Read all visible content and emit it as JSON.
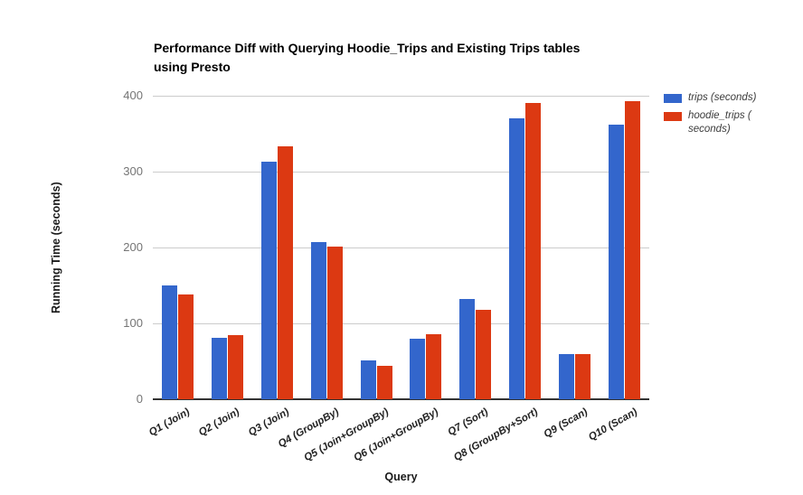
{
  "title": "Performance Diff with Querying Hoodie_Trips and Existing Trips tables\nusing Presto",
  "chart_data": {
    "type": "bar",
    "title": "Performance Diff with Querying Hoodie_Trips and Existing Trips tables using Presto",
    "xlabel": "Query",
    "ylabel": "Running Time (seconds)",
    "ylim": [
      0,
      400
    ],
    "yticks": [
      0,
      100,
      200,
      300,
      400
    ],
    "grid": true,
    "legend_position": "right",
    "categories": [
      "Q1 (Join)",
      "Q2 (Join)",
      "Q3 (Join)",
      "Q4 (GroupBy)",
      "Q5 (Join+GroupBy)",
      "Q6 (Join+GroupBy)",
      "Q7 (Sort)",
      "Q8 (GroupBy+Sort)",
      "Q9 (Scan)",
      "Q10 (Scan)"
    ],
    "series": [
      {
        "name": "trips (seconds)",
        "color": "#3366CC",
        "values": [
          150,
          81,
          313,
          207,
          51,
          80,
          132,
          370,
          60,
          362
        ]
      },
      {
        "name": "hoodie_trips (seconds)",
        "color": "#DC3912",
        "values": [
          138,
          85,
          333,
          201,
          44,
          86,
          118,
          390,
          59,
          393
        ]
      }
    ]
  },
  "legend": {
    "items": [
      {
        "label": "trips (seconds)",
        "color": "#3366CC"
      },
      {
        "label": "hoodie_trips (\nseconds)",
        "color": "#DC3912"
      }
    ]
  },
  "colors": {
    "series_blue": "#3366CC",
    "series_red": "#DC3912",
    "gridline": "#cccccc",
    "baseline": "#333333",
    "tick_text": "#757575"
  }
}
